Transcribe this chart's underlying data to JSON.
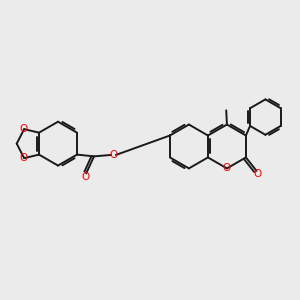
{
  "bg_color": "#ebebeb",
  "bond_color": "#1a1a1a",
  "oxygen_color": "#ff0000",
  "line_width": 1.4,
  "dbo": 0.055,
  "figsize": [
    3.0,
    3.0
  ],
  "dpi": 100,
  "xlim": [
    -4.2,
    4.2
  ],
  "ylim": [
    -2.5,
    2.5
  ]
}
